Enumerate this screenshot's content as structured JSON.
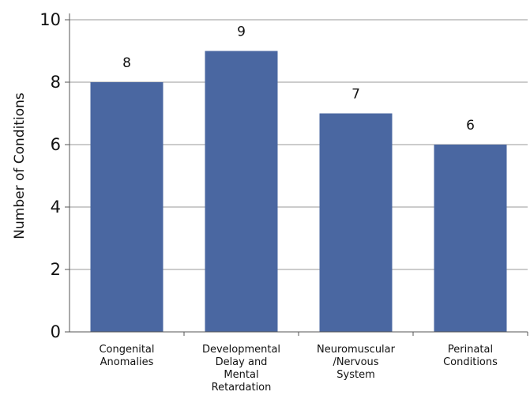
{
  "chart_data": {
    "type": "bar",
    "categories": [
      [
        "Congenital",
        "Anomalies"
      ],
      [
        "Developmental",
        "Delay and",
        "Mental",
        "Retardation"
      ],
      [
        "Neuromuscular",
        "/Nervous",
        "System"
      ],
      [
        "Perinatal",
        "Conditions"
      ]
    ],
    "values": [
      8,
      9,
      7,
      6
    ],
    "data_labels": [
      "8",
      "9",
      "7",
      "6"
    ],
    "ylabel": "Number of Conditions",
    "ylim": [
      0,
      10
    ],
    "yticks": [
      0,
      2,
      4,
      6,
      8,
      10
    ],
    "ytick_labels": [
      "0",
      "2",
      "4",
      "6",
      "8",
      "10"
    ],
    "grid": true,
    "legend": "none",
    "colors": {
      "bar": "#4a67a1",
      "grid": "#999999",
      "axis": "#555555"
    }
  }
}
